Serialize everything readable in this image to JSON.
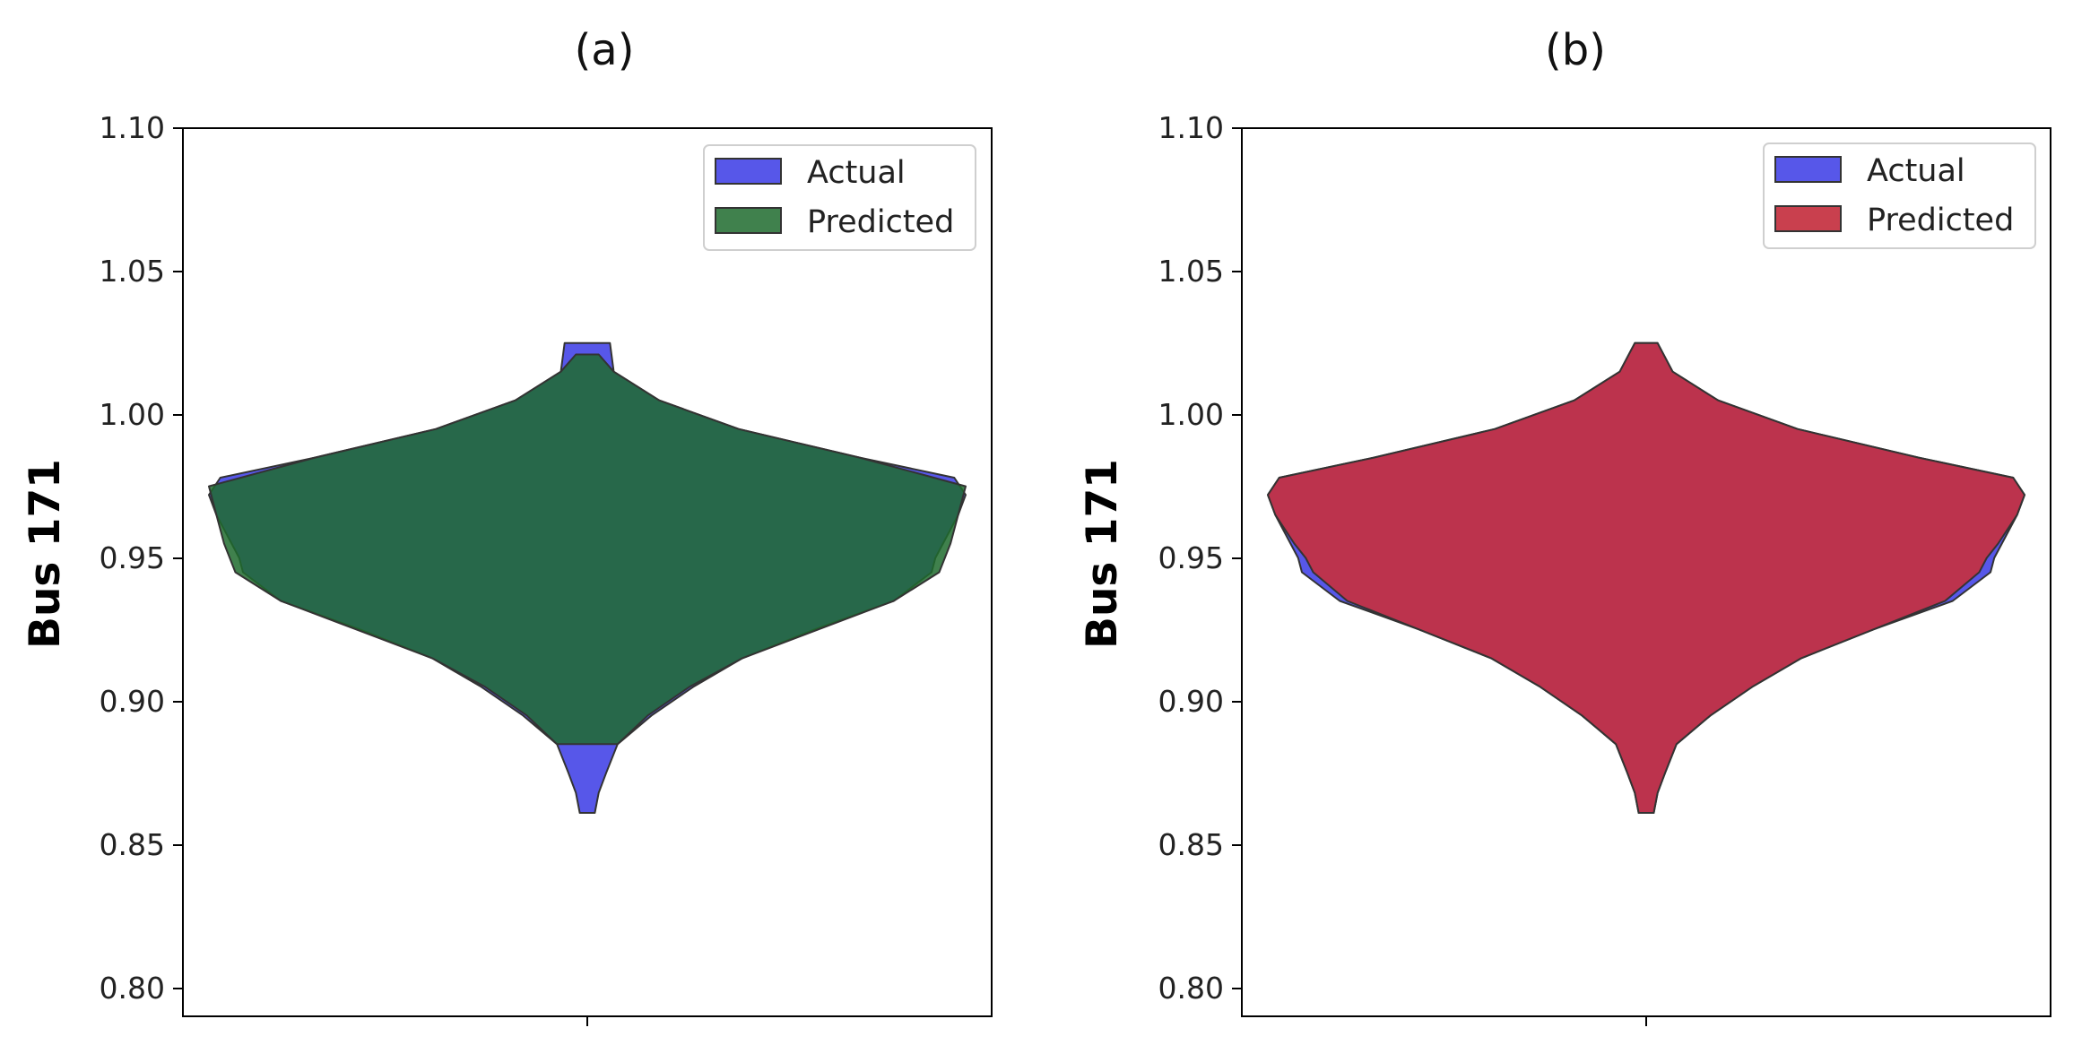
{
  "chart_data": [
    {
      "type": "violin",
      "panel_label": "(a)",
      "ylabel": "Bus 171",
      "ylim": [
        0.79,
        1.1
      ],
      "yticks": [
        "0.80",
        "0.85",
        "0.90",
        "0.95",
        "1.00",
        "1.05",
        "1.10"
      ],
      "ytick_values": [
        0.8,
        0.85,
        0.9,
        0.95,
        1.0,
        1.05,
        1.1
      ],
      "legend_position": "upper right",
      "series": [
        {
          "name": "Actual",
          "color": "#4040e6",
          "opacity": 0.88,
          "min": 0.861,
          "max": 1.025,
          "profile": [
            [
              0.861,
              0.02
            ],
            [
              0.868,
              0.03
            ],
            [
              0.875,
              0.05
            ],
            [
              0.885,
              0.08
            ],
            [
              0.895,
              0.17
            ],
            [
              0.905,
              0.28
            ],
            [
              0.915,
              0.41
            ],
            [
              0.925,
              0.6
            ],
            [
              0.935,
              0.81
            ],
            [
              0.945,
              0.91
            ],
            [
              0.95,
              0.92
            ],
            [
              0.955,
              0.94
            ],
            [
              0.965,
              0.98
            ],
            [
              0.972,
              1.0
            ],
            [
              0.978,
              0.97
            ],
            [
              0.985,
              0.72
            ],
            [
              0.995,
              0.4
            ],
            [
              1.005,
              0.19
            ],
            [
              1.015,
              0.07
            ],
            [
              1.025,
              0.06
            ]
          ]
        },
        {
          "name": "Predicted",
          "color": "#1f6b2e",
          "opacity": 0.85,
          "min": 0.885,
          "max": 1.021,
          "profile": [
            [
              0.885,
              0.08
            ],
            [
              0.895,
              0.16
            ],
            [
              0.905,
              0.27
            ],
            [
              0.915,
              0.41
            ],
            [
              0.925,
              0.61
            ],
            [
              0.935,
              0.81
            ],
            [
              0.945,
              0.93
            ],
            [
              0.955,
              0.96
            ],
            [
              0.965,
              0.98
            ],
            [
              0.975,
              1.0
            ],
            [
              0.985,
              0.72
            ],
            [
              0.995,
              0.4
            ],
            [
              1.005,
              0.19
            ],
            [
              1.015,
              0.07
            ],
            [
              1.021,
              0.03
            ]
          ]
        }
      ]
    },
    {
      "type": "violin",
      "panel_label": "(b)",
      "ylabel": "Bus 171",
      "ylim": [
        0.79,
        1.1
      ],
      "yticks": [
        "0.80",
        "0.85",
        "0.90",
        "0.95",
        "1.00",
        "1.05",
        "1.10"
      ],
      "ytick_values": [
        0.8,
        0.85,
        0.9,
        0.95,
        1.0,
        1.05,
        1.1
      ],
      "legend_position": "upper right",
      "series": [
        {
          "name": "Actual",
          "color": "#4040e6",
          "opacity": 0.88,
          "min": 0.861,
          "max": 1.025,
          "profile": [
            [
              0.861,
              0.02
            ],
            [
              0.868,
              0.03
            ],
            [
              0.875,
              0.05
            ],
            [
              0.885,
              0.08
            ],
            [
              0.895,
              0.17
            ],
            [
              0.905,
              0.28
            ],
            [
              0.915,
              0.41
            ],
            [
              0.925,
              0.6
            ],
            [
              0.935,
              0.81
            ],
            [
              0.945,
              0.91
            ],
            [
              0.95,
              0.92
            ],
            [
              0.955,
              0.94
            ],
            [
              0.965,
              0.98
            ],
            [
              0.972,
              1.0
            ],
            [
              0.978,
              0.97
            ],
            [
              0.985,
              0.72
            ],
            [
              0.995,
              0.4
            ],
            [
              1.005,
              0.19
            ],
            [
              1.015,
              0.07
            ],
            [
              1.025,
              0.03
            ]
          ]
        },
        {
          "name": "Predicted",
          "color": "#c4303f",
          "opacity": 0.92,
          "min": 0.861,
          "max": 1.025,
          "profile": [
            [
              0.861,
              0.02
            ],
            [
              0.868,
              0.03
            ],
            [
              0.875,
              0.05
            ],
            [
              0.885,
              0.08
            ],
            [
              0.895,
              0.17
            ],
            [
              0.905,
              0.28
            ],
            [
              0.915,
              0.41
            ],
            [
              0.925,
              0.6
            ],
            [
              0.935,
              0.79
            ],
            [
              0.945,
              0.88
            ],
            [
              0.95,
              0.9
            ],
            [
              0.955,
              0.93
            ],
            [
              0.965,
              0.98
            ],
            [
              0.972,
              1.0
            ],
            [
              0.978,
              0.97
            ],
            [
              0.985,
              0.72
            ],
            [
              0.995,
              0.4
            ],
            [
              1.005,
              0.19
            ],
            [
              1.015,
              0.07
            ],
            [
              1.025,
              0.03
            ]
          ]
        }
      ]
    }
  ]
}
